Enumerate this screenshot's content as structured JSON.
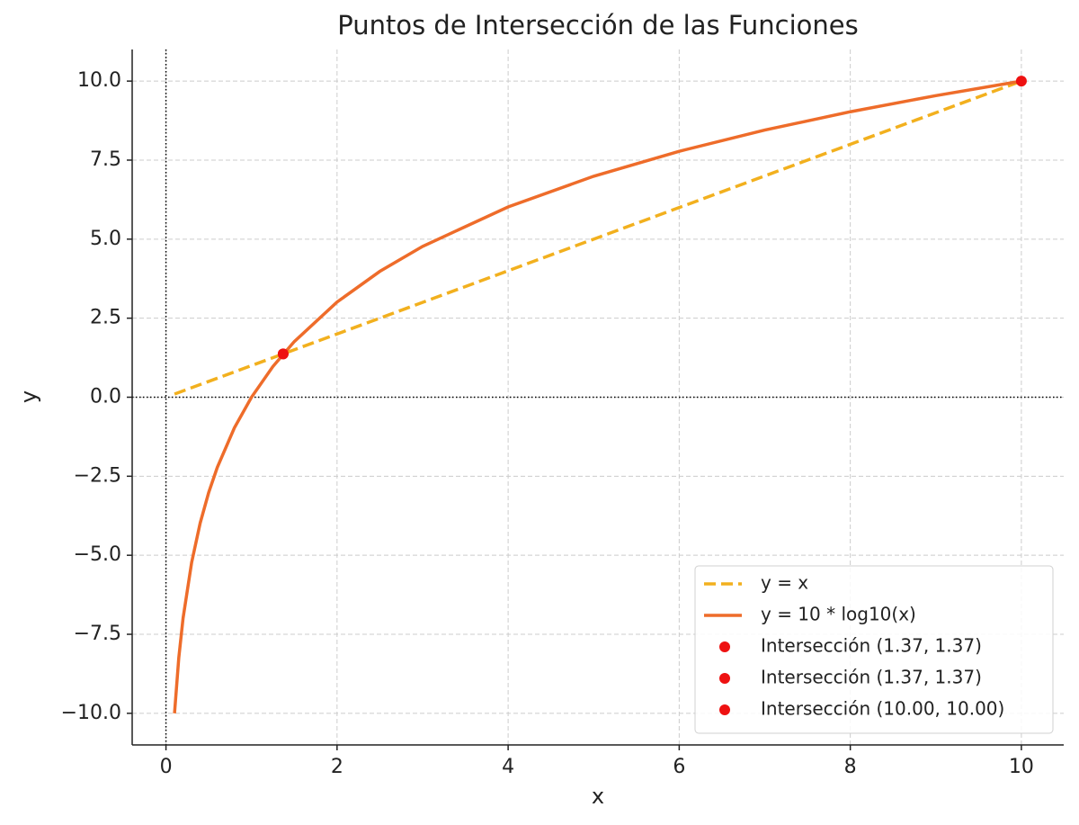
{
  "chart_data": {
    "type": "line",
    "title": "Puntos de Intersección de las Funciones",
    "x_label": "x",
    "y_label": "y",
    "xlim": [
      -0.395,
      10.495
    ],
    "ylim": [
      -11,
      11
    ],
    "xticks": [
      0,
      2,
      4,
      6,
      8,
      10
    ],
    "yticks": [
      {
        "value": -10,
        "label": "−10.0"
      },
      {
        "value": -7.5,
        "label": "−7.5"
      },
      {
        "value": -5,
        "label": "−5.0"
      },
      {
        "value": -2.5,
        "label": "−2.5"
      },
      {
        "value": 0,
        "label": "0.0"
      },
      2.5,
      {
        "value": 5,
        "label": "5.0"
      },
      7.5,
      {
        "value": 10,
        "label": "10.0"
      }
    ],
    "grid": true,
    "legend": "lower right",
    "hlines": [
      0
    ],
    "vlines": [
      0
    ],
    "series": [
      {
        "name": "y = x",
        "type": "line",
        "linestyle": "dashed",
        "color": "#f2b01e",
        "x": [
          0.1,
          10
        ],
        "values": [
          0.1,
          10
        ]
      },
      {
        "name": "y = 10 * log10(x)",
        "type": "line",
        "linestyle": "solid",
        "color": "#ee6c2a",
        "x": [
          0.1,
          0.15,
          0.2,
          0.3,
          0.4,
          0.5,
          0.6,
          0.8,
          1,
          1.25,
          1.5,
          2,
          2.5,
          3,
          4,
          5,
          6,
          7,
          8,
          9,
          10
        ],
        "values": [
          -10,
          -8.24,
          -6.99,
          -5.23,
          -3.98,
          -3.01,
          -2.22,
          -0.97,
          0,
          0.97,
          1.76,
          3.01,
          3.98,
          4.77,
          6.02,
          6.99,
          7.78,
          8.45,
          9.03,
          9.54,
          10
        ]
      },
      {
        "name": "Intersección (1.37, 1.37)",
        "type": "scatter",
        "color": "#ee1111",
        "x": [
          1.37
        ],
        "values": [
          1.37
        ]
      },
      {
        "name": "Intersección (1.37, 1.37)",
        "type": "scatter",
        "color": "#ee1111",
        "x": [
          1.37
        ],
        "values": [
          1.37
        ]
      },
      {
        "name": "Intersección (10.00, 10.00)",
        "type": "scatter",
        "color": "#ee1111",
        "x": [
          10
        ],
        "values": [
          10
        ]
      }
    ]
  }
}
